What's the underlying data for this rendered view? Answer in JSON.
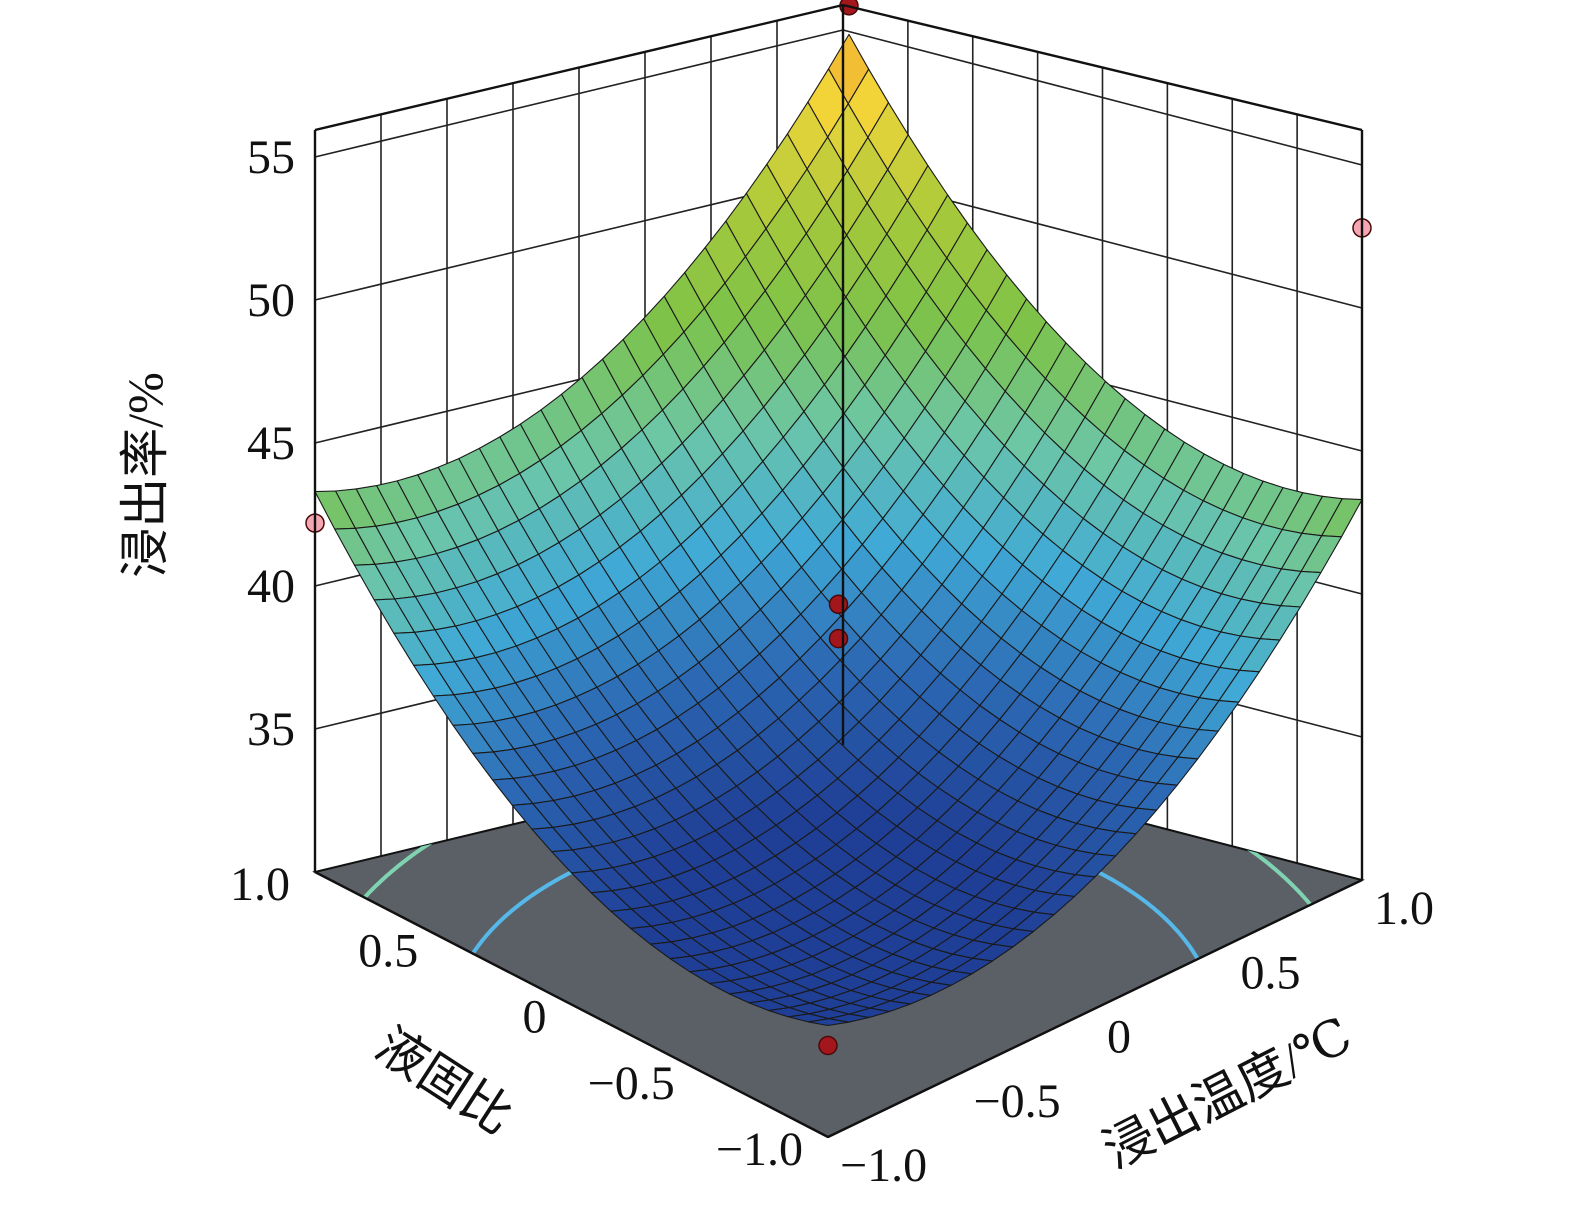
{
  "chart_data": {
    "type": "surface3d",
    "title": "",
    "zlabel": "浸出率/%",
    "xlabel": "浸出温度/℃",
    "ylabel": "液固比",
    "z_ticks": [
      "35",
      "40",
      "45",
      "50",
      "55"
    ],
    "x_ticks": [
      "−1.0",
      "−0.5",
      "0",
      "0.5",
      "1.0"
    ],
    "y_ticks": [
      "−1.0",
      "−0.5",
      "0",
      "0.5",
      "1.0"
    ],
    "zlim": [
      30,
      55
    ],
    "xlim": [
      -1,
      1
    ],
    "ylim": [
      -1,
      1
    ],
    "surface_corners": [
      {
        "x": -1,
        "y": -1,
        "z": 33.9
      },
      {
        "x": -1,
        "y": 1,
        "z": 43.3
      },
      {
        "x": 1,
        "y": -1,
        "z": 43.3
      },
      {
        "x": 1,
        "y": 1,
        "z": 50.3
      }
    ],
    "design_points": [
      {
        "x": -1,
        "y": 1,
        "z": 42.2,
        "above": false
      },
      {
        "x": 1,
        "y": -1,
        "z": 52.8,
        "above": false
      },
      {
        "x": 1,
        "y": 1,
        "z": 51.3,
        "above": true
      },
      {
        "x": 0,
        "y": 0,
        "z": 39.5,
        "above": true
      },
      {
        "x": 0,
        "y": 0,
        "z": 38.3,
        "above": true
      },
      {
        "x": -1,
        "y": -1,
        "z": 33.2,
        "above": true
      }
    ],
    "contours": [
      {
        "z": 37,
        "color": "#55b8e8"
      },
      {
        "z": 41,
        "color": "#7fd3b0"
      },
      {
        "z": 45,
        "color": "#8cc63f"
      },
      {
        "z": 48,
        "color": "#9fcf3a"
      },
      {
        "z": 50.5,
        "color": "#e6e23a"
      }
    ],
    "floor_color": "#5b5f66",
    "colormap": [
      "#1f3e95",
      "#2c68b3",
      "#40a9d6",
      "#6cc6a8",
      "#7cc24a",
      "#a9c93a",
      "#f2d63a",
      "#f29a2a"
    ],
    "grid": true
  }
}
